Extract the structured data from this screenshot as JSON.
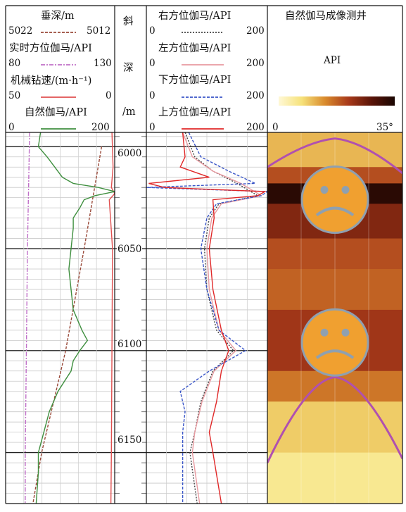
{
  "chart_data": {
    "type": "line",
    "depth": {
      "track_title_chars": [
        "斜",
        "深",
        "/m"
      ],
      "ticks": [
        6000,
        6050,
        6100,
        6150
      ],
      "range": [
        5993,
        6175
      ]
    },
    "track1": {
      "curves": [
        {
          "id": "tvd",
          "label": "垂深/m",
          "left": "5022",
          "right": "5012",
          "color": "#9a4a3a",
          "dash": "4,2",
          "points": [
            [
              6000,
              0.88
            ],
            [
              6050,
              0.72
            ],
            [
              6100,
              0.55
            ],
            [
              6150,
              0.33
            ],
            [
              6175,
              0.25
            ]
          ]
        },
        {
          "id": "azi",
          "label": "实时方位伽马/API",
          "left": "80",
          "right": "130",
          "color": "#c070c8",
          "dash": "6,2,2,2",
          "points": [
            [
              5993,
              0.22
            ],
            [
              6050,
              0.2
            ],
            [
              6100,
              0.19
            ],
            [
              6150,
              0.18
            ],
            [
              6175,
              0.18
            ]
          ]
        },
        {
          "id": "rop",
          "label": "机械钻速/(m·h⁻¹)",
          "left": "50",
          "right": "0",
          "color": "#e05050",
          "dash": "",
          "points": [
            [
              5993,
              0.975
            ],
            [
              6010,
              0.985
            ],
            [
              6020,
              0.97
            ],
            [
              6023,
              1.0
            ],
            [
              6026,
              0.95
            ],
            [
              6050,
              0.98
            ],
            [
              6100,
              0.975
            ],
            [
              6150,
              0.97
            ],
            [
              6175,
              0.965
            ]
          ]
        },
        {
          "id": "gr",
          "label": "自然伽马/API",
          "left": "0",
          "right": "200",
          "color": "#3f8f3f",
          "dash": "",
          "points": [
            [
              5993,
              0.32
            ],
            [
              6000,
              0.3
            ],
            [
              6005,
              0.38
            ],
            [
              6010,
              0.45
            ],
            [
              6015,
              0.52
            ],
            [
              6018,
              0.62
            ],
            [
              6020,
              0.85
            ],
            [
              6022,
              1.0
            ],
            [
              6024,
              0.82
            ],
            [
              6026,
              0.72
            ],
            [
              6030,
              0.68
            ],
            [
              6035,
              0.62
            ],
            [
              6040,
              0.62
            ],
            [
              6050,
              0.6
            ],
            [
              6060,
              0.58
            ],
            [
              6070,
              0.6
            ],
            [
              6080,
              0.62
            ],
            [
              6090,
              0.7
            ],
            [
              6095,
              0.75
            ],
            [
              6100,
              0.68
            ],
            [
              6105,
              0.62
            ],
            [
              6110,
              0.6
            ],
            [
              6120,
              0.48
            ],
            [
              6130,
              0.4
            ],
            [
              6140,
              0.35
            ],
            [
              6150,
              0.3
            ],
            [
              6160,
              0.3
            ],
            [
              6175,
              0.28
            ]
          ]
        }
      ]
    },
    "track2": {
      "scale_left": "0",
      "scale_right": "200",
      "curves": [
        {
          "id": "right",
          "label": "右方位伽马/API",
          "color": "#444444",
          "dash": "2,2",
          "points": [
            [
              5993,
              0.32
            ],
            [
              6005,
              0.4
            ],
            [
              6012,
              0.55
            ],
            [
              6018,
              0.75
            ],
            [
              6024,
              0.92
            ],
            [
              6028,
              0.6
            ],
            [
              6035,
              0.52
            ],
            [
              6050,
              0.48
            ],
            [
              6070,
              0.5
            ],
            [
              6090,
              0.58
            ],
            [
              6100,
              0.72
            ],
            [
              6110,
              0.55
            ],
            [
              6125,
              0.45
            ],
            [
              6140,
              0.4
            ],
            [
              6150,
              0.36
            ],
            [
              6175,
              0.42
            ]
          ]
        },
        {
          "id": "left",
          "label": "左方位伽马/API",
          "color": "#e89aa0",
          "dash": "",
          "points": [
            [
              5993,
              0.3
            ],
            [
              6005,
              0.38
            ],
            [
              6012,
              0.55
            ],
            [
              6018,
              0.78
            ],
            [
              6024,
              0.95
            ],
            [
              6028,
              0.62
            ],
            [
              6035,
              0.54
            ],
            [
              6050,
              0.5
            ],
            [
              6070,
              0.52
            ],
            [
              6090,
              0.6
            ],
            [
              6100,
              0.74
            ],
            [
              6110,
              0.56
            ],
            [
              6125,
              0.46
            ],
            [
              6140,
              0.4
            ],
            [
              6150,
              0.38
            ],
            [
              6175,
              0.44
            ]
          ]
        },
        {
          "id": "down",
          "label": "下方位伽马/API",
          "color": "#3a56c8",
          "dash": "4,2",
          "points": [
            [
              5993,
              0.35
            ],
            [
              6005,
              0.45
            ],
            [
              6012,
              0.68
            ],
            [
              6018,
              0.9
            ],
            [
              6020,
              0.0
            ],
            [
              6022,
              1.0
            ],
            [
              6024,
              0.95
            ],
            [
              6028,
              0.58
            ],
            [
              6035,
              0.5
            ],
            [
              6050,
              0.45
            ],
            [
              6070,
              0.5
            ],
            [
              6090,
              0.6
            ],
            [
              6100,
              0.82
            ],
            [
              6110,
              0.52
            ],
            [
              6120,
              0.28
            ],
            [
              6130,
              0.32
            ],
            [
              6140,
              0.3
            ],
            [
              6150,
              0.3
            ],
            [
              6175,
              0.3
            ]
          ]
        },
        {
          "id": "up",
          "label": "上方位伽马/API",
          "color": "#e02828",
          "dash": "",
          "points": [
            [
              5993,
              0.3
            ],
            [
              6005,
              0.32
            ],
            [
              6010,
              0.28
            ],
            [
              6015,
              0.52
            ],
            [
              6018,
              0.02
            ],
            [
              6020,
              0.15
            ],
            [
              6022,
              0.98
            ],
            [
              6024,
              0.92
            ],
            [
              6026,
              0.55
            ],
            [
              6035,
              0.56
            ],
            [
              6050,
              0.52
            ],
            [
              6070,
              0.55
            ],
            [
              6090,
              0.62
            ],
            [
              6100,
              0.68
            ],
            [
              6110,
              0.62
            ],
            [
              6125,
              0.58
            ],
            [
              6140,
              0.52
            ],
            [
              6150,
              0.55
            ],
            [
              6175,
              0.62
            ]
          ]
        }
      ]
    },
    "track3": {
      "title": "自然伽马成像测井",
      "unit": "API",
      "scale_min": "0",
      "scale_max": "35°",
      "colormap": [
        "#fff8d6",
        "#f6e27a",
        "#d98a2c",
        "#a83a1a",
        "#5a1408",
        "#1a0602"
      ],
      "bands": [
        {
          "from": 5993,
          "to": 6010,
          "level": 0.3
        },
        {
          "from": 6010,
          "to": 6018,
          "level": 0.55
        },
        {
          "from": 6018,
          "to": 6028,
          "level": 0.95
        },
        {
          "from": 6028,
          "to": 6045,
          "level": 0.7
        },
        {
          "from": 6045,
          "to": 6060,
          "level": 0.55
        },
        {
          "from": 6060,
          "to": 6080,
          "level": 0.5
        },
        {
          "from": 6080,
          "to": 6110,
          "level": 0.62
        },
        {
          "from": 6110,
          "to": 6125,
          "level": 0.45
        },
        {
          "from": 6125,
          "to": 6150,
          "level": 0.25
        },
        {
          "from": 6150,
          "to": 6175,
          "level": 0.15
        }
      ],
      "boundary_curves": [
        {
          "id": "upper-arch",
          "color": "#b050b0",
          "points": [
            [
              0,
              6010
            ],
            [
              0.5,
              5996
            ],
            [
              1,
              6013
            ]
          ]
        },
        {
          "id": "lower-arch",
          "color": "#b050b0",
          "points": [
            [
              0,
              6155
            ],
            [
              0.5,
              6113
            ],
            [
              1,
              6153
            ]
          ]
        }
      ],
      "faces": [
        {
          "id": "face-top",
          "depth": 6026,
          "color": "#f0a030"
        },
        {
          "id": "face-bottom",
          "depth": 6096,
          "color": "#f0a030"
        }
      ]
    }
  }
}
